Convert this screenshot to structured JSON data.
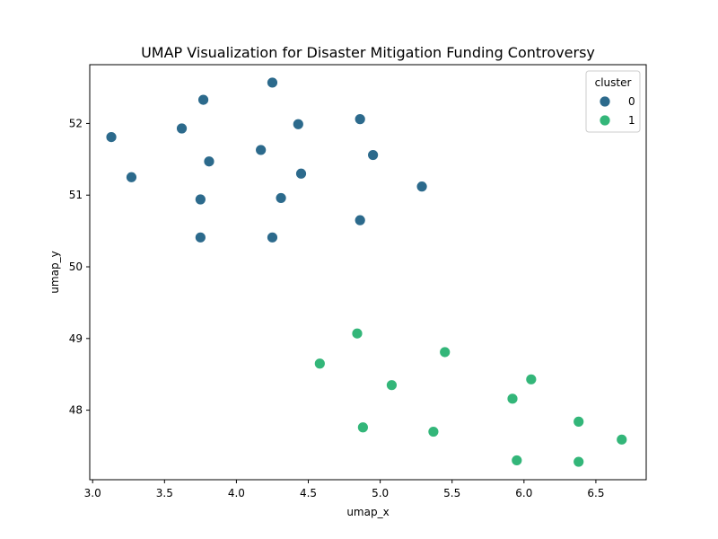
{
  "chart_data": {
    "type": "scatter",
    "title": "UMAP Visualization for Disaster Mitigation Funding Controversy",
    "xlabel": "umap_x",
    "ylabel": "umap_y",
    "xlim": [
      2.98,
      6.85
    ],
    "ylim": [
      47.03,
      52.82
    ],
    "xticks": [
      "3.0",
      "3.5",
      "4.0",
      "4.5",
      "5.0",
      "5.5",
      "6.0",
      "6.5"
    ],
    "yticks": [
      "48",
      "49",
      "50",
      "51",
      "52"
    ],
    "grid": false,
    "legend": {
      "title": "cluster",
      "position": "top-right",
      "entries": [
        "0",
        "1"
      ]
    },
    "series": [
      {
        "name": "0",
        "color": "#2c6a8c",
        "points": [
          {
            "x": 4.25,
            "y": 52.57
          },
          {
            "x": 3.77,
            "y": 52.33
          },
          {
            "x": 4.43,
            "y": 51.99
          },
          {
            "x": 4.86,
            "y": 52.06
          },
          {
            "x": 3.62,
            "y": 51.93
          },
          {
            "x": 3.13,
            "y": 51.81
          },
          {
            "x": 4.17,
            "y": 51.63
          },
          {
            "x": 4.95,
            "y": 51.56
          },
          {
            "x": 3.81,
            "y": 51.47
          },
          {
            "x": 4.45,
            "y": 51.3
          },
          {
            "x": 3.27,
            "y": 51.25
          },
          {
            "x": 5.29,
            "y": 51.12
          },
          {
            "x": 3.75,
            "y": 50.94
          },
          {
            "x": 4.31,
            "y": 50.96
          },
          {
            "x": 4.86,
            "y": 50.65
          },
          {
            "x": 3.75,
            "y": 50.41
          },
          {
            "x": 4.25,
            "y": 50.41
          }
        ]
      },
      {
        "name": "1",
        "color": "#33b679",
        "points": [
          {
            "x": 4.84,
            "y": 49.07
          },
          {
            "x": 5.45,
            "y": 48.81
          },
          {
            "x": 4.58,
            "y": 48.65
          },
          {
            "x": 6.05,
            "y": 48.43
          },
          {
            "x": 5.08,
            "y": 48.35
          },
          {
            "x": 5.92,
            "y": 48.16
          },
          {
            "x": 6.38,
            "y": 47.84
          },
          {
            "x": 4.88,
            "y": 47.76
          },
          {
            "x": 5.37,
            "y": 47.7
          },
          {
            "x": 6.68,
            "y": 47.59
          },
          {
            "x": 5.95,
            "y": 47.3
          },
          {
            "x": 6.38,
            "y": 47.28
          }
        ]
      }
    ]
  }
}
